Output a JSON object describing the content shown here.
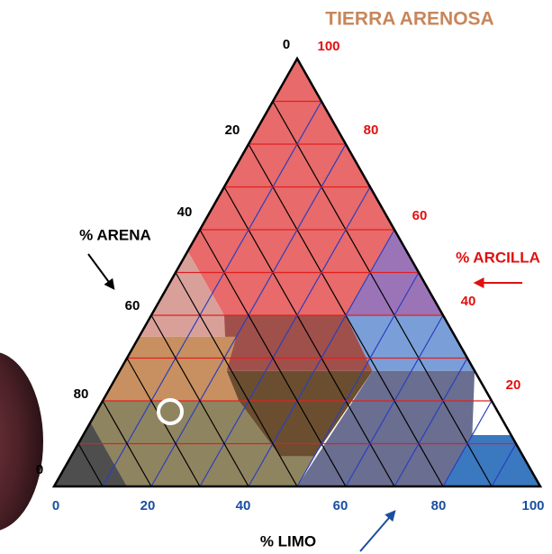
{
  "header": {
    "title": "TIERRA ARENOSA"
  },
  "axes": {
    "sand": {
      "label": "% ARENA",
      "ticks": [
        "0",
        "20",
        "40",
        "60",
        "80",
        "0"
      ]
    },
    "clay": {
      "label": "% ARCILLA",
      "ticks": [
        "100",
        "80",
        "60",
        "40",
        "20"
      ]
    },
    "silt": {
      "label": "% LIMO",
      "ticks": [
        "0",
        "20",
        "40",
        "60",
        "80",
        "100"
      ]
    }
  }
}
